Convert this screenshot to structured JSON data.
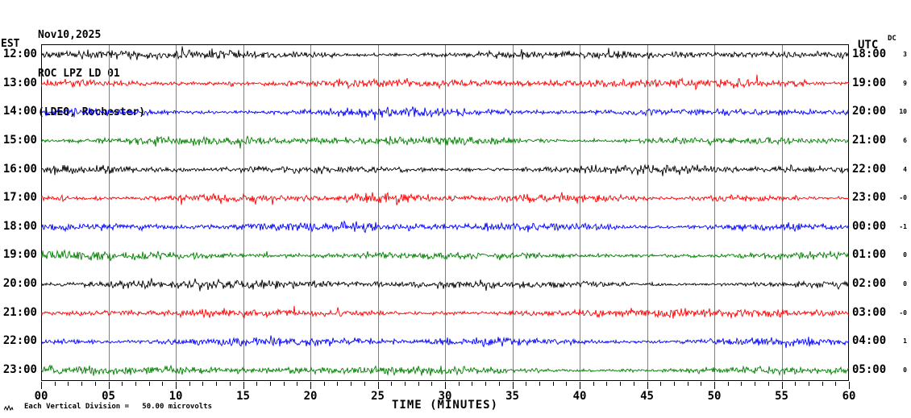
{
  "title": {
    "date": "Nov10,2025",
    "station": "ROC LPZ LD 01",
    "location": "(LDEO, Rochester)"
  },
  "axes": {
    "left_label": "EST",
    "right_label": "UTC",
    "dc_label": "DC",
    "x_label": "TIME (MINUTES)"
  },
  "footer": {
    "scale_note": "Each Vertical Division =   50.00 microvolts"
  },
  "chart_data": {
    "type": "line",
    "kind": "helicorder-seismogram",
    "station": "ROC LPZ LD 01",
    "network_site": "(LDEO, Rochester)",
    "date": "Nov10,2025",
    "x_range_minutes": [
      0,
      60
    ],
    "x_major_tick_minutes": 5,
    "x_minor_tick_minutes": 1,
    "x_tick_labels": [
      "00",
      "05",
      "10",
      "15",
      "20",
      "25",
      "30",
      "35",
      "40",
      "45",
      "50",
      "55",
      "60"
    ],
    "xlabel": "TIME (MINUTES)",
    "grid": {
      "vertical_line_every_minutes": 5,
      "color": "#808080"
    },
    "frame_color": "#000000",
    "trace_colors_cycle": [
      "#000000",
      "#ff0000",
      "#0000ff",
      "#008000"
    ],
    "amplitude_scale": "Each Vertical Division = 50.00 microvolts",
    "signal_character": "continuous low-amplitude background noise on every trace, no distinct seismic events",
    "rows": [
      {
        "est": "12:00",
        "utc": "18:00",
        "dc": "3",
        "color": "#000000"
      },
      {
        "est": "13:00",
        "utc": "19:00",
        "dc": "9",
        "color": "#ff0000"
      },
      {
        "est": "14:00",
        "utc": "20:00",
        "dc": "10",
        "color": "#0000ff"
      },
      {
        "est": "15:00",
        "utc": "21:00",
        "dc": "6",
        "color": "#008000"
      },
      {
        "est": "16:00",
        "utc": "22:00",
        "dc": "4",
        "color": "#000000"
      },
      {
        "est": "17:00",
        "utc": "23:00",
        "dc": "-0",
        "color": "#ff0000"
      },
      {
        "est": "18:00",
        "utc": "00:00",
        "dc": "-1",
        "color": "#0000ff"
      },
      {
        "est": "19:00",
        "utc": "01:00",
        "dc": "0",
        "color": "#008000"
      },
      {
        "est": "20:00",
        "utc": "02:00",
        "dc": "0",
        "color": "#000000"
      },
      {
        "est": "21:00",
        "utc": "03:00",
        "dc": "-0",
        "color": "#ff0000"
      },
      {
        "est": "22:00",
        "utc": "04:00",
        "dc": "1",
        "color": "#0000ff"
      },
      {
        "est": "23:00",
        "utc": "05:00",
        "dc": "0",
        "color": "#008000"
      }
    ]
  }
}
